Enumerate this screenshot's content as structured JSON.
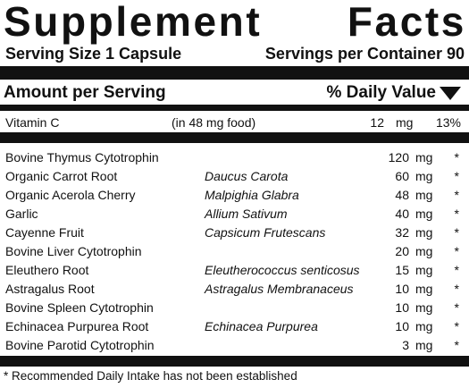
{
  "title": {
    "word1": "Supplement",
    "word2": "Facts"
  },
  "serving": {
    "size": "Serving Size 1 Capsule",
    "per_container": "Servings per Container 90"
  },
  "header": {
    "amount": "Amount per Serving",
    "daily_value": "% Daily Value"
  },
  "vitamin_c": {
    "name": "Vitamin C",
    "source": "(in 48 mg food)",
    "amount": "12",
    "unit": "mg",
    "dv": "13%"
  },
  "ingredients": [
    {
      "name": "Bovine Thymus Cytotrophin",
      "latin": "",
      "amount": "120",
      "unit": "mg",
      "dv": "*"
    },
    {
      "name": "Organic Carrot Root",
      "latin": "Daucus Carota",
      "amount": "60",
      "unit": "mg",
      "dv": "*"
    },
    {
      "name": "Organic Acerola Cherry",
      "latin": "Malpighia Glabra",
      "amount": "48",
      "unit": "mg",
      "dv": "*"
    },
    {
      "name": "Garlic",
      "latin": "Allium Sativum",
      "amount": "40",
      "unit": "mg",
      "dv": "*"
    },
    {
      "name": "Cayenne Fruit",
      "latin": "Capsicum Frutescans",
      "amount": "32",
      "unit": "mg",
      "dv": "*"
    },
    {
      "name": "Bovine Liver Cytotrophin",
      "latin": "",
      "amount": "20",
      "unit": "mg",
      "dv": "*"
    },
    {
      "name": "Eleuthero Root",
      "latin": "Eleutherococcus senticosus",
      "amount": "15",
      "unit": "mg",
      "dv": "*"
    },
    {
      "name": "Astragalus Root",
      "latin": "Astragalus Membranaceus",
      "amount": "10",
      "unit": "mg",
      "dv": "*"
    },
    {
      "name": "Bovine Spleen Cytotrophin",
      "latin": "",
      "amount": "10",
      "unit": "mg",
      "dv": "*"
    },
    {
      "name": "Echinacea Purpurea Root",
      "latin": "Echinacea Purpurea",
      "amount": "10",
      "unit": "mg",
      "dv": "*"
    },
    {
      "name": "Bovine Parotid Cytotrophin",
      "latin": "",
      "amount": "3",
      "unit": "mg",
      "dv": "*"
    }
  ],
  "footnote": "* Recommended Daily Intake has not been established"
}
